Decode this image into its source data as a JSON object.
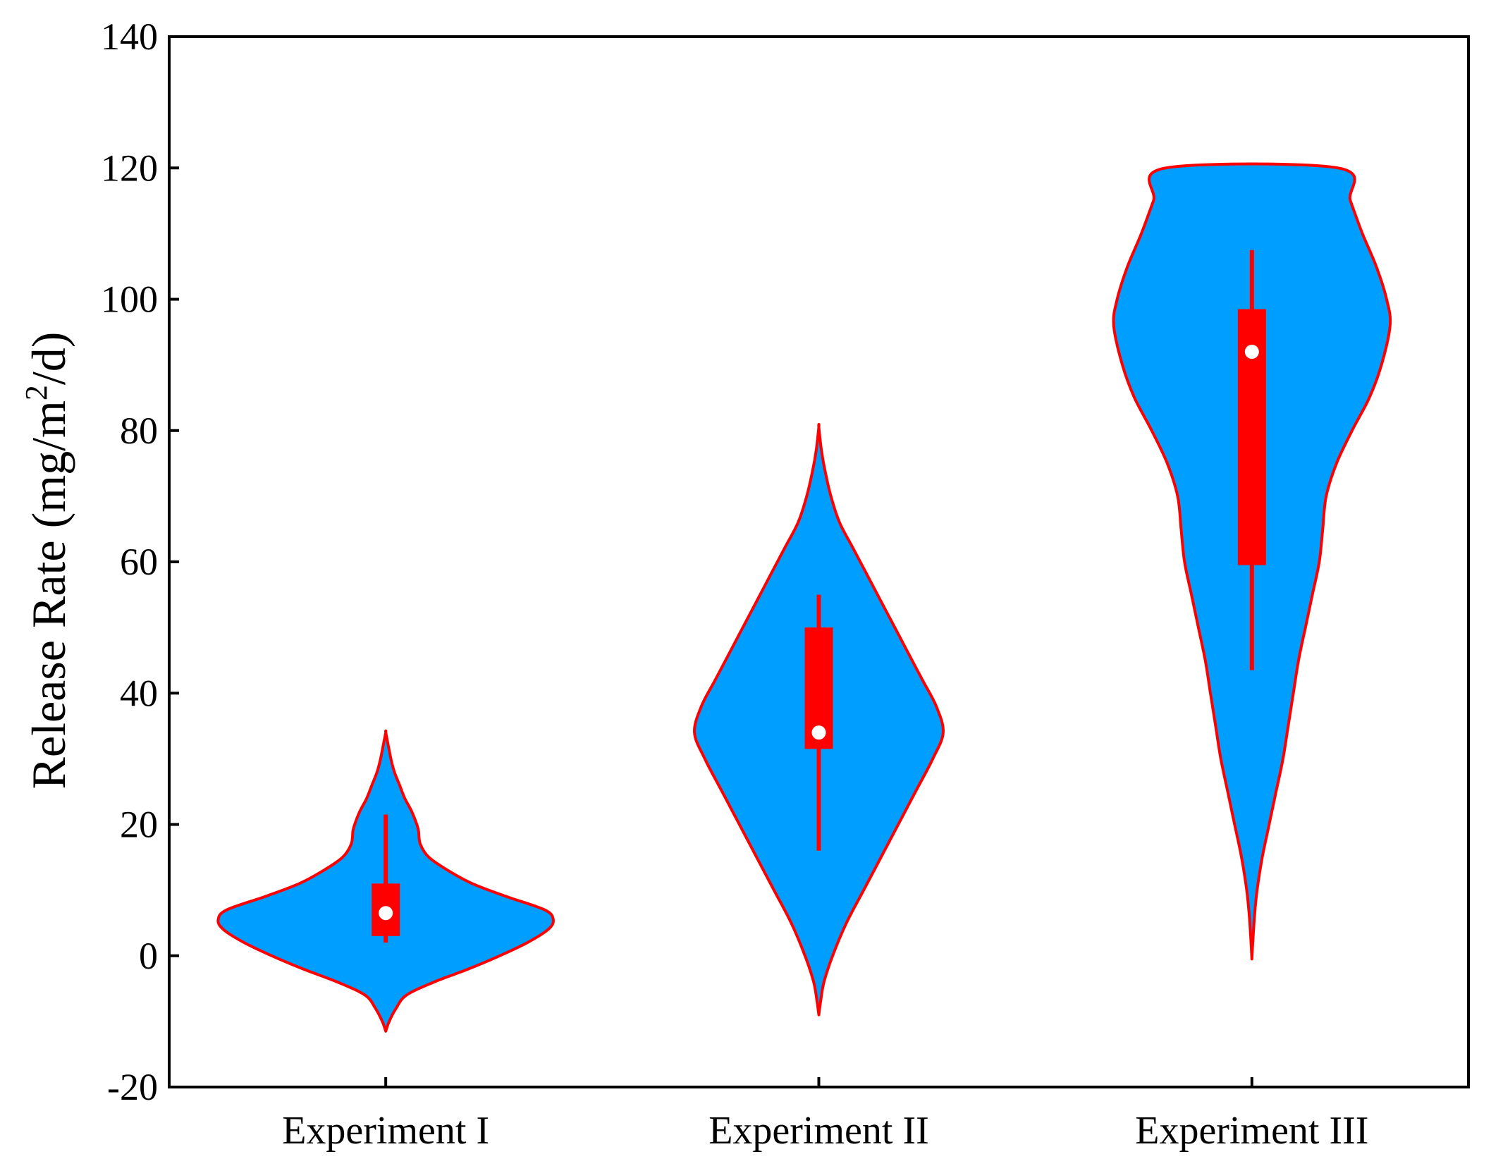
{
  "chart_data": {
    "type": "violin",
    "title": "",
    "xlabel": "",
    "ylabel": {
      "prefix": "Release Rate (mg/m",
      "superscript": "2",
      "suffix": "/d)"
    },
    "ylim": [
      -20,
      140
    ],
    "yticks": [
      -20,
      0,
      20,
      40,
      60,
      80,
      100,
      120,
      140
    ],
    "categories": [
      "Experiment I",
      "Experiment II",
      "Experiment III"
    ],
    "colors": {
      "fill": "#009fff",
      "outline": "#ff0000",
      "box": "#ff0000",
      "median_marker": "#ffffff",
      "axis": "#000000"
    },
    "series": [
      {
        "name": "Experiment I",
        "density": [
          [
            -11.5,
            0.0
          ],
          [
            -10,
            0.02
          ],
          [
            -8,
            0.06
          ],
          [
            -6,
            0.12
          ],
          [
            -4,
            0.28
          ],
          [
            -2,
            0.48
          ],
          [
            0,
            0.66
          ],
          [
            2,
            0.82
          ],
          [
            4,
            0.94
          ],
          [
            5.5,
            0.97
          ],
          [
            7,
            0.92
          ],
          [
            9,
            0.7
          ],
          [
            11,
            0.5
          ],
          [
            13,
            0.36
          ],
          [
            15,
            0.25
          ],
          [
            17,
            0.2
          ],
          [
            19,
            0.19
          ],
          [
            20,
            0.18
          ],
          [
            22,
            0.15
          ],
          [
            24,
            0.11
          ],
          [
            26,
            0.08
          ],
          [
            28,
            0.05
          ],
          [
            30,
            0.03
          ],
          [
            32,
            0.015
          ],
          [
            34,
            0.0
          ]
        ],
        "whisker_low": 2,
        "q1": 3,
        "median": 6.5,
        "q3": 11,
        "whisker_high": 21.5
      },
      {
        "name": "Experiment II",
        "density": [
          [
            -9,
            0.0
          ],
          [
            -7,
            0.01
          ],
          [
            -4,
            0.03
          ],
          [
            0,
            0.08
          ],
          [
            5,
            0.16
          ],
          [
            10,
            0.26
          ],
          [
            15,
            0.36
          ],
          [
            20,
            0.46
          ],
          [
            25,
            0.56
          ],
          [
            30,
            0.66
          ],
          [
            34,
            0.72
          ],
          [
            38,
            0.68
          ],
          [
            42,
            0.6
          ],
          [
            46,
            0.52
          ],
          [
            50,
            0.44
          ],
          [
            54,
            0.36
          ],
          [
            58,
            0.28
          ],
          [
            62,
            0.2
          ],
          [
            66,
            0.12
          ],
          [
            70,
            0.07
          ],
          [
            74,
            0.035
          ],
          [
            77,
            0.015
          ],
          [
            80.5,
            0.0
          ]
        ],
        "whisker_low": 16,
        "q1": 31.5,
        "median": 34,
        "q3": 50,
        "whisker_high": 55
      },
      {
        "name": "Experiment III",
        "density": [
          [
            -0.5,
            0.0
          ],
          [
            2,
            0.005
          ],
          [
            6,
            0.015
          ],
          [
            10,
            0.03
          ],
          [
            15,
            0.06
          ],
          [
            20,
            0.1
          ],
          [
            25,
            0.14
          ],
          [
            30,
            0.18
          ],
          [
            35,
            0.21
          ],
          [
            40,
            0.24
          ],
          [
            45,
            0.27
          ],
          [
            50,
            0.31
          ],
          [
            55,
            0.35
          ],
          [
            60,
            0.39
          ],
          [
            65,
            0.41
          ],
          [
            70,
            0.43
          ],
          [
            75,
            0.49
          ],
          [
            80,
            0.58
          ],
          [
            85,
            0.68
          ],
          [
            90,
            0.75
          ],
          [
            96,
            0.8
          ],
          [
            100,
            0.78
          ],
          [
            105,
            0.72
          ],
          [
            110,
            0.64
          ],
          [
            115,
            0.57
          ],
          [
            120,
            0.5
          ]
        ],
        "whisker_low": 43.5,
        "q1": 59.5,
        "median": 92,
        "q3": 98.5,
        "whisker_high": 107.5
      }
    ]
  }
}
